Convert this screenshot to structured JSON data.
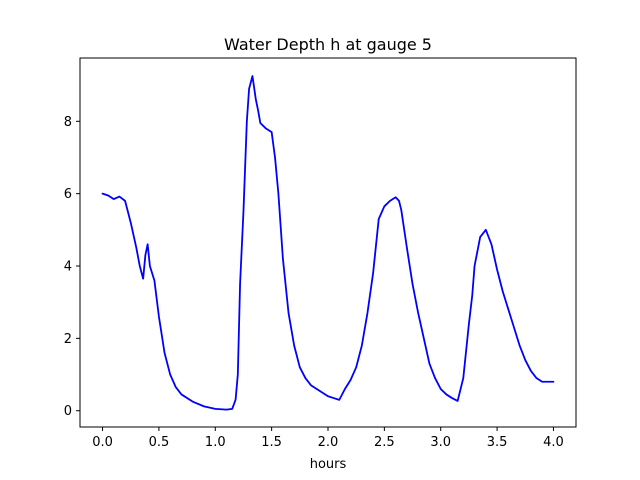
{
  "chart_data": {
    "type": "line",
    "title": "Water Depth h at gauge 5",
    "xlabel": "hours",
    "ylabel": "",
    "xlim": [
      -0.2,
      4.2
    ],
    "ylim": [
      -0.45,
      9.75
    ],
    "xticks": [
      0.0,
      0.5,
      1.0,
      1.5,
      2.0,
      2.5,
      3.0,
      3.5,
      4.0
    ],
    "xtick_labels": [
      "0.0",
      "0.5",
      "1.0",
      "1.5",
      "2.0",
      "2.5",
      "3.0",
      "3.5",
      "4.0"
    ],
    "yticks": [
      0,
      2,
      4,
      6,
      8
    ],
    "ytick_labels": [
      "0",
      "2",
      "4",
      "6",
      "8"
    ],
    "grid": false,
    "series": [
      {
        "color": "#0000ff",
        "x": [
          0.0,
          0.05,
          0.1,
          0.15,
          0.2,
          0.25,
          0.3,
          0.33,
          0.36,
          0.38,
          0.4,
          0.42,
          0.46,
          0.5,
          0.55,
          0.6,
          0.65,
          0.7,
          0.8,
          0.9,
          1.0,
          1.1,
          1.15,
          1.18,
          1.2,
          1.22,
          1.25,
          1.28,
          1.3,
          1.33,
          1.36,
          1.38,
          1.4,
          1.45,
          1.5,
          1.53,
          1.56,
          1.6,
          1.65,
          1.7,
          1.75,
          1.8,
          1.85,
          1.9,
          1.95,
          2.0,
          2.05,
          2.1,
          2.15,
          2.18,
          2.2,
          2.25,
          2.3,
          2.35,
          2.4,
          2.45,
          2.5,
          2.55,
          2.6,
          2.63,
          2.65,
          2.7,
          2.75,
          2.8,
          2.85,
          2.9,
          2.95,
          3.0,
          3.05,
          3.1,
          3.15,
          3.2,
          3.25,
          3.28,
          3.3,
          3.35,
          3.4,
          3.45,
          3.5,
          3.55,
          3.6,
          3.65,
          3.7,
          3.75,
          3.8,
          3.85,
          3.9,
          3.95,
          4.0
        ],
        "y": [
          6.0,
          5.95,
          5.85,
          5.92,
          5.8,
          5.2,
          4.5,
          4.0,
          3.65,
          4.3,
          4.6,
          4.0,
          3.6,
          2.6,
          1.6,
          1.0,
          0.65,
          0.45,
          0.25,
          0.12,
          0.05,
          0.03,
          0.05,
          0.3,
          1.0,
          3.5,
          5.5,
          8.0,
          8.9,
          9.25,
          8.6,
          8.3,
          7.95,
          7.8,
          7.7,
          7.0,
          6.0,
          4.2,
          2.7,
          1.8,
          1.2,
          0.9,
          0.7,
          0.6,
          0.5,
          0.4,
          0.35,
          0.3,
          0.6,
          0.75,
          0.85,
          1.2,
          1.8,
          2.7,
          3.8,
          5.3,
          5.65,
          5.8,
          5.9,
          5.8,
          5.55,
          4.5,
          3.5,
          2.7,
          2.0,
          1.3,
          0.9,
          0.6,
          0.45,
          0.35,
          0.27,
          0.9,
          2.4,
          3.2,
          4.0,
          4.8,
          5.0,
          4.6,
          3.9,
          3.3,
          2.8,
          2.3,
          1.8,
          1.4,
          1.1,
          0.9,
          0.8,
          0.8,
          0.8
        ]
      }
    ]
  }
}
